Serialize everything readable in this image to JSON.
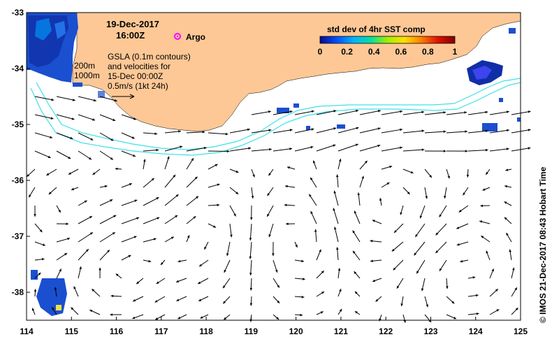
{
  "map": {
    "date": "19-Dec-2017",
    "time": "16:00Z",
    "argo_label": "Argo",
    "gsla_lines": [
      "GSLA (0.1m contours)",
      "and velocities for",
      "15-Dec 00:00Z",
      "0.5m/s (1kt 24h)"
    ],
    "depth_labels": [
      "200m",
      "1000m"
    ],
    "colorbar": {
      "title": "std dev of 4hr SST comp",
      "ticks": [
        "0",
        "0.2",
        "0.4",
        "0.6",
        "0.8",
        "1"
      ],
      "colors": [
        "#0a0a8c",
        "#0050ff",
        "#00b4ff",
        "#00e0a0",
        "#a0f000",
        "#ffe000",
        "#ff8000",
        "#e01000",
        "#800000"
      ]
    },
    "credit": "© IMOS 21-Dec-2017 08:43 Hobart Time",
    "x_ticks": [
      "114",
      "115",
      "116",
      "117",
      "118",
      "119",
      "120",
      "121",
      "122",
      "123",
      "124",
      "125"
    ],
    "y_ticks": [
      "-33",
      "-34",
      "-35",
      "-36",
      "-37",
      "-38"
    ],
    "colors": {
      "land": "#fdc896",
      "shelf": "#40e0e8",
      "arrow": "#000000",
      "argo": "#ff00ff"
    }
  }
}
